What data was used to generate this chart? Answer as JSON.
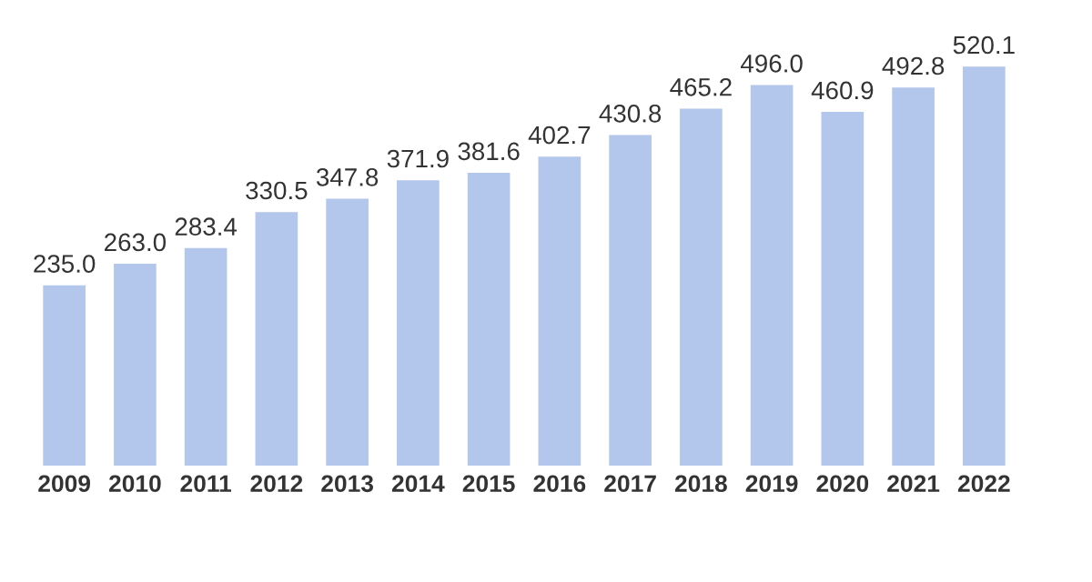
{
  "chart_data": {
    "type": "bar",
    "categories": [
      "2009",
      "2010",
      "2011",
      "2012",
      "2013",
      "2014",
      "2015",
      "2016",
      "2017",
      "2018",
      "2019",
      "2020",
      "2021",
      "2022"
    ],
    "values": [
      235.0,
      263.0,
      283.4,
      330.5,
      347.8,
      371.9,
      381.6,
      402.7,
      430.8,
      465.2,
      496.0,
      460.9,
      492.8,
      520.1
    ],
    "value_labels": [
      "235.0",
      "263.0",
      "283.4",
      "330.5",
      "347.8",
      "371.9",
      "381.6",
      "402.7",
      "430.8",
      "465.2",
      "496.0",
      "460.9",
      "492.8",
      "520.1"
    ],
    "color": "#b3c6ec",
    "tick_labels": "x",
    "grid": false,
    "legend": false
  }
}
